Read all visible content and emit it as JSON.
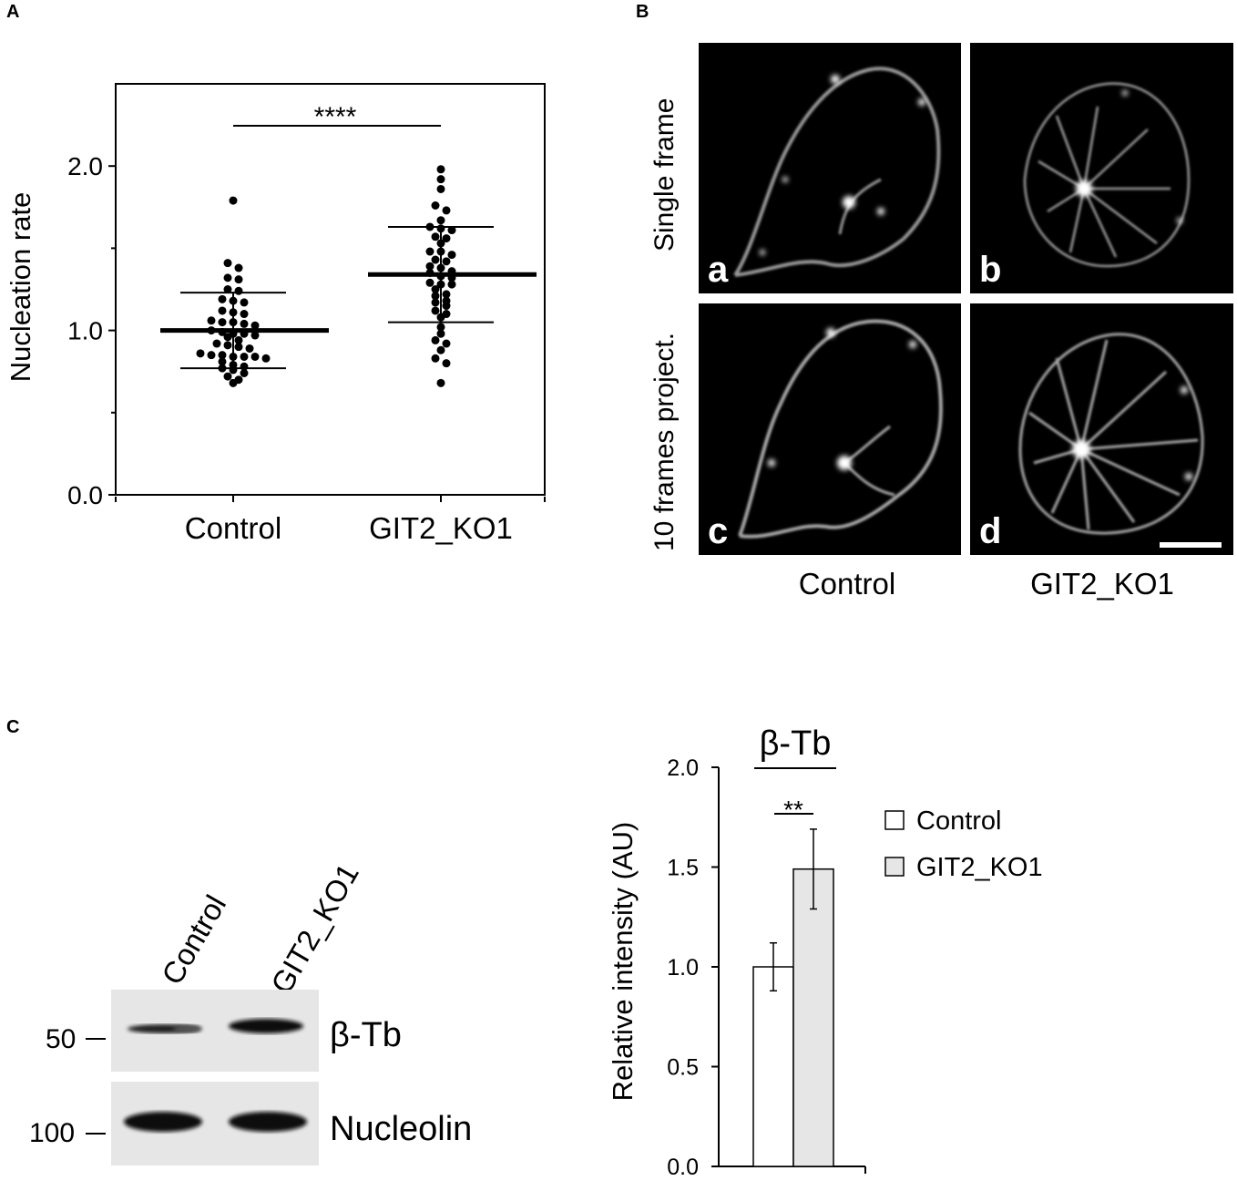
{
  "panels": {
    "a": "A",
    "b": "B",
    "c": "C"
  },
  "chart_data": [
    {
      "panel": "A",
      "type": "scatter",
      "ylabel": "Nucleation rate",
      "ylim": [
        0,
        2.5
      ],
      "yticks": [
        "0.0",
        "1.0",
        "2.0"
      ],
      "categories": [
        "Control",
        "GIT2_KO1"
      ],
      "significance": "****",
      "series": [
        {
          "category": "Control",
          "mean": 1.0,
          "sd_low": 0.77,
          "sd_high": 1.23,
          "values": [
            1.79,
            1.41,
            1.38,
            1.32,
            1.31,
            1.25,
            1.24,
            1.19,
            1.18,
            1.17,
            1.12,
            1.11,
            1.1,
            1.06,
            1.05,
            1.05,
            1.04,
            1.03,
            1.0,
            0.99,
            0.98,
            0.98,
            0.97,
            0.96,
            0.94,
            0.92,
            0.91,
            0.9,
            0.89,
            0.86,
            0.85,
            0.85,
            0.84,
            0.84,
            0.84,
            0.83,
            0.81,
            0.79,
            0.78,
            0.77,
            0.76,
            0.74,
            0.72,
            0.7,
            0.68
          ]
        },
        {
          "category": "GIT2_KO1",
          "mean": 1.34,
          "sd_low": 1.05,
          "sd_high": 1.63,
          "values": [
            1.98,
            1.92,
            1.86,
            1.76,
            1.73,
            1.67,
            1.63,
            1.62,
            1.61,
            1.57,
            1.56,
            1.53,
            1.48,
            1.48,
            1.46,
            1.43,
            1.42,
            1.39,
            1.38,
            1.36,
            1.35,
            1.33,
            1.32,
            1.29,
            1.28,
            1.28,
            1.25,
            1.22,
            1.21,
            1.18,
            1.17,
            1.15,
            1.12,
            1.1,
            1.08,
            1.02,
            0.98,
            0.94,
            0.92,
            0.88,
            0.83,
            0.8,
            0.68
          ]
        }
      ]
    },
    {
      "panel": "C",
      "type": "bar",
      "title": "β-Tb",
      "ylabel": "Relative intensity (AU)",
      "ylim": [
        0,
        2.0
      ],
      "yticks": [
        "0.0",
        "0.5",
        "1.0",
        "1.5",
        "2.0"
      ],
      "significance": "**",
      "series": [
        {
          "name": "Control",
          "value": 1.0,
          "error": 0.12,
          "color": "#ffffff"
        },
        {
          "name": "GIT2_KO1",
          "value": 1.49,
          "error": 0.2,
          "color": "#e6e6e6"
        }
      ]
    }
  ],
  "micrographs": {
    "row_labels": [
      "Single frame",
      "10 frames project."
    ],
    "col_labels": [
      "Control",
      "GIT2_KO1"
    ],
    "letters": [
      "a",
      "b",
      "c",
      "d"
    ]
  },
  "blot": {
    "lanes": [
      "Control",
      "GIT2_KO1"
    ],
    "markers": [
      "50",
      "100"
    ],
    "band_labels": [
      "β-Tb",
      "Nucleolin"
    ]
  }
}
